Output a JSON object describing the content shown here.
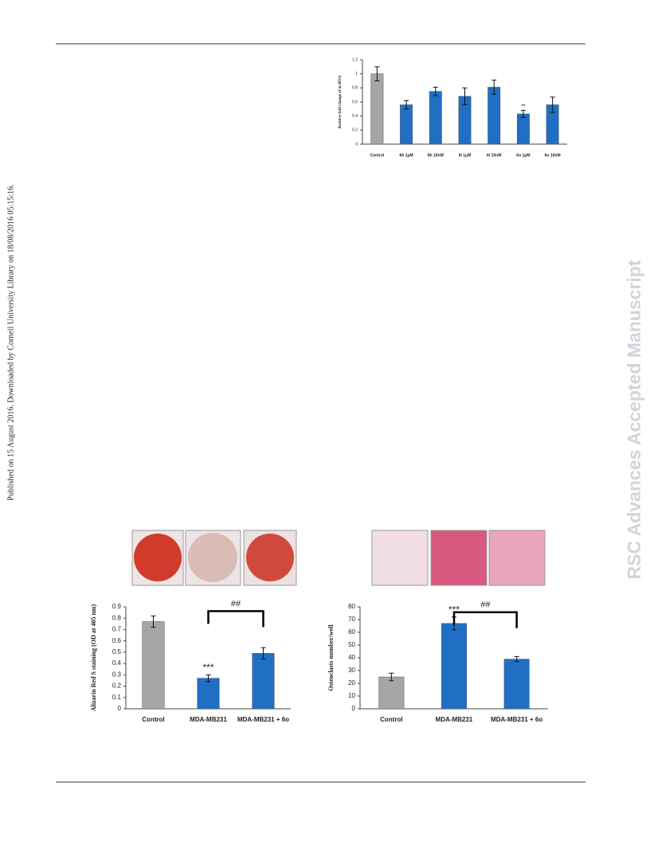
{
  "side_note": "Published on 15 August 2016. Downloaded by Cornell University Library on 18/08/2016 05:15:16.",
  "watermark": "RSC Advances Accepted Manuscript",
  "chart_data": [
    {
      "type": "bar",
      "y_label": "Relative fold change of m-RNA",
      "categories": [
        "Control",
        "6h 1μM",
        "6h 10nM",
        "6l 1μM",
        "6l 10nM",
        "6o 1μM",
        "6o 10nM"
      ],
      "values": [
        1.0,
        0.56,
        0.75,
        0.68,
        0.81,
        0.43,
        0.56
      ],
      "errors": [
        0.1,
        0.06,
        0.06,
        0.12,
        0.1,
        0.05,
        0.11
      ],
      "colors": [
        "#a6a6a6",
        "#1f6fc5",
        "#1f6fc5",
        "#1f6fc5",
        "#1f6fc5",
        "#1f6fc5",
        "#1f6fc5"
      ],
      "significance": [
        null,
        null,
        null,
        null,
        null,
        "**",
        null
      ],
      "ylim": [
        0,
        1.2
      ],
      "yticks": [
        0,
        0.2,
        0.4,
        0.6,
        0.8,
        1,
        1.2
      ],
      "grid": false
    },
    {
      "type": "bar",
      "y_label": "Alizarin Red S staining (OD at 405 nm)",
      "categories": [
        "Control",
        "MDA-MB231",
        "MDA-MB231 + 6o"
      ],
      "values": [
        0.77,
        0.27,
        0.49
      ],
      "errors": [
        0.05,
        0.03,
        0.05
      ],
      "colors": [
        "#a6a6a6",
        "#1f6fc5",
        "#1f6fc5"
      ],
      "significance": [
        null,
        "***",
        null
      ],
      "bracket_label": "##",
      "ylim": [
        0,
        0.9
      ],
      "yticks": [
        0,
        0.1,
        0.2,
        0.3,
        0.4,
        0.5,
        0.6,
        0.7,
        0.8,
        0.9
      ],
      "grid": false
    },
    {
      "type": "bar",
      "y_label": "Osteoclasts number/well",
      "categories": [
        "Control",
        "MDA-MB231",
        "MDA-MB231 + 6o"
      ],
      "values": [
        25,
        67,
        39
      ],
      "errors": [
        3,
        5,
        2
      ],
      "colors": [
        "#a6a6a6",
        "#1f6fc5",
        "#1f6fc5"
      ],
      "significance": [
        null,
        "***",
        null
      ],
      "bracket_label": "##",
      "ylim": [
        0,
        80
      ],
      "yticks": [
        0,
        10,
        20,
        30,
        40,
        50,
        60,
        70,
        80
      ],
      "grid": false
    }
  ]
}
